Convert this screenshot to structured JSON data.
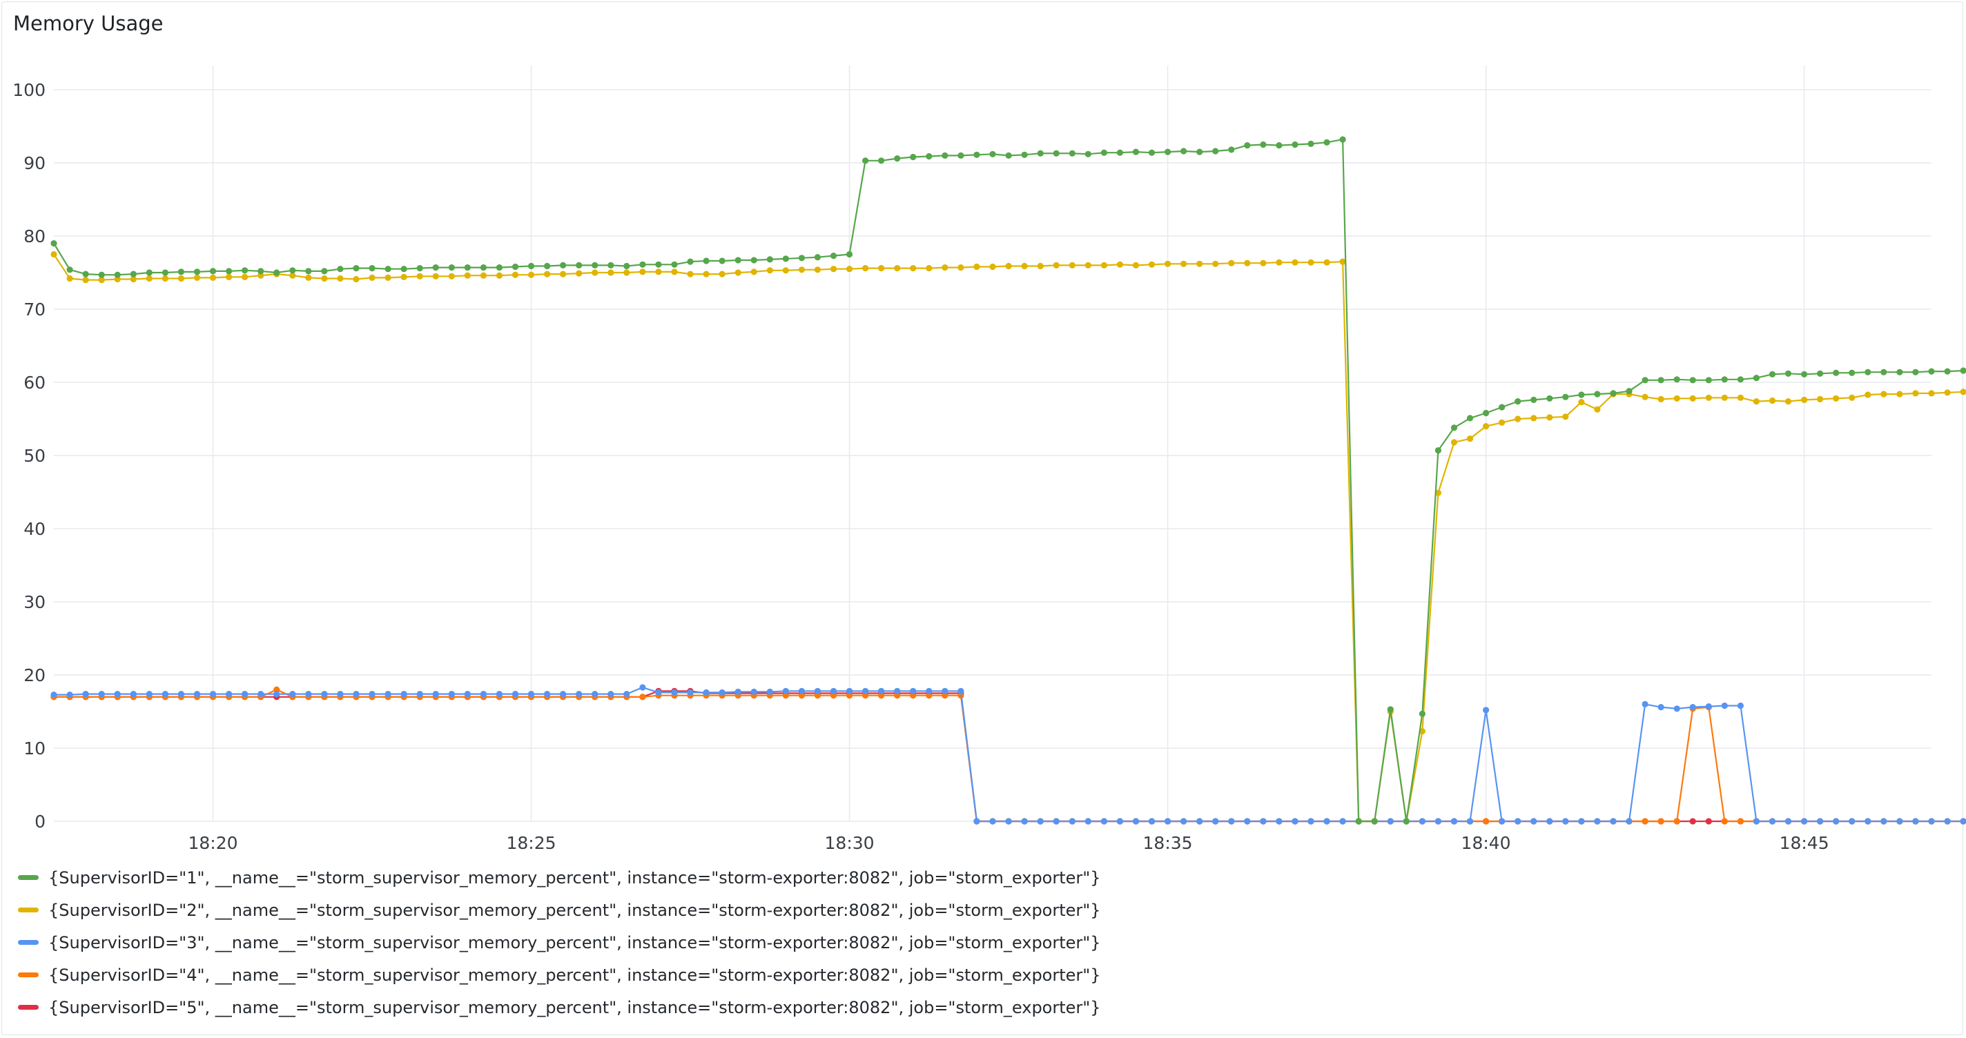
{
  "panel": {
    "title": "Memory Usage"
  },
  "colors": {
    "grid": "#e7e9ed",
    "axis_text": "#3a3f46"
  },
  "chart_data": {
    "type": "line",
    "title": "Memory Usage",
    "xlabel": "",
    "ylabel": "",
    "ylim": [
      0,
      100
    ],
    "xlim": [
      "18:17:30",
      "18:47:00"
    ],
    "grid": true,
    "legend_position": "bottom",
    "y_ticks": [
      "0",
      "10",
      "20",
      "30",
      "40",
      "50",
      "60",
      "70",
      "80",
      "90",
      "100"
    ],
    "x_ticks": [
      "18:20",
      "18:25",
      "18:30",
      "18:35",
      "18:40",
      "18:45"
    ],
    "sample_interval_seconds": 15,
    "x_start": "18:17:30",
    "series": [
      {
        "name": "{SupervisorID=\"1\", __name__=\"storm_supervisor_memory_percent\", instance=\"storm-exporter:8082\", job=\"storm_exporter\"}",
        "color": "#56a64b",
        "values": [
          79.0,
          75.4,
          74.8,
          74.7,
          74.7,
          74.8,
          75.0,
          75.0,
          75.1,
          75.1,
          75.2,
          75.2,
          75.3,
          75.2,
          75.0,
          75.3,
          75.2,
          75.2,
          75.5,
          75.6,
          75.6,
          75.5,
          75.5,
          75.6,
          75.7,
          75.7,
          75.7,
          75.7,
          75.7,
          75.8,
          75.9,
          75.9,
          76.0,
          76.0,
          76.0,
          76.0,
          75.9,
          76.1,
          76.1,
          76.1,
          76.5,
          76.6,
          76.6,
          76.7,
          76.7,
          76.8,
          76.9,
          77.0,
          77.1,
          77.3,
          77.5,
          90.3,
          90.3,
          90.6,
          90.8,
          90.9,
          91.0,
          91.0,
          91.1,
          91.2,
          91.0,
          91.1,
          91.3,
          91.3,
          91.3,
          91.2,
          91.4,
          91.4,
          91.5,
          91.4,
          91.5,
          91.6,
          91.5,
          91.6,
          91.8,
          92.4,
          92.5,
          92.4,
          92.5,
          92.6,
          92.8,
          93.2,
          0,
          0,
          15.3,
          0,
          14.7,
          50.7,
          53.8,
          55.1,
          55.8,
          56.6,
          57.4,
          57.6,
          57.8,
          58.0,
          58.3,
          58.4,
          58.5,
          58.8,
          60.3,
          60.3,
          60.4,
          60.3,
          60.3,
          60.4,
          60.4,
          60.6,
          61.1,
          61.2,
          61.1,
          61.2,
          61.3,
          61.3,
          61.4,
          61.4,
          61.4,
          61.4,
          61.5,
          61.5,
          61.6,
          61.6,
          61.6
        ],
        "start_index": 0
      },
      {
        "name": "{SupervisorID=\"2\", __name__=\"storm_supervisor_memory_percent\", instance=\"storm-exporter:8082\", job=\"storm_exporter\"}",
        "color": "#e0b400",
        "values": [
          77.5,
          74.2,
          74.0,
          74.0,
          74.1,
          74.1,
          74.2,
          74.2,
          74.2,
          74.3,
          74.3,
          74.4,
          74.4,
          74.6,
          74.8,
          74.6,
          74.3,
          74.2,
          74.2,
          74.1,
          74.3,
          74.3,
          74.4,
          74.5,
          74.5,
          74.5,
          74.6,
          74.6,
          74.6,
          74.7,
          74.7,
          74.8,
          74.8,
          74.9,
          75.0,
          75.0,
          75.0,
          75.1,
          75.1,
          75.1,
          74.8,
          74.8,
          74.8,
          75.0,
          75.1,
          75.3,
          75.3,
          75.4,
          75.4,
          75.5,
          75.5,
          75.6,
          75.6,
          75.6,
          75.6,
          75.6,
          75.7,
          75.7,
          75.8,
          75.8,
          75.9,
          75.9,
          75.9,
          76.0,
          76.0,
          76.0,
          76.0,
          76.1,
          76.0,
          76.1,
          76.2,
          76.2,
          76.2,
          76.2,
          76.3,
          76.3,
          76.3,
          76.4,
          76.4,
          76.4,
          76.4,
          76.5,
          0,
          0,
          15.0,
          0,
          12.3,
          44.9,
          51.8,
          52.3,
          54.0,
          54.5,
          55.0,
          55.1,
          55.2,
          55.3,
          57.3,
          56.3,
          58.4,
          58.4,
          58.0,
          57.7,
          57.8,
          57.8,
          57.9,
          57.9,
          57.9,
          57.4,
          57.5,
          57.4,
          57.6,
          57.7,
          57.8,
          57.9,
          58.3,
          58.4,
          58.4,
          58.5,
          58.5,
          58.6,
          58.7,
          58.7,
          58.6
        ],
        "start_index": 0
      },
      {
        "name": "{SupervisorID=\"3\", __name__=\"storm_supervisor_memory_percent\", instance=\"storm-exporter:8082\", job=\"storm_exporter\"}",
        "color": "#5794f2",
        "values": [
          17.3,
          17.3,
          17.4,
          17.4,
          17.4,
          17.4,
          17.4,
          17.4,
          17.4,
          17.4,
          17.4,
          17.4,
          17.4,
          17.4,
          17.4,
          17.4,
          17.4,
          17.4,
          17.4,
          17.4,
          17.4,
          17.4,
          17.4,
          17.4,
          17.4,
          17.4,
          17.4,
          17.4,
          17.4,
          17.4,
          17.4,
          17.4,
          17.4,
          17.4,
          17.4,
          17.4,
          17.4,
          18.3,
          17.6,
          17.6,
          17.6,
          17.6,
          17.6,
          17.7,
          17.7,
          17.7,
          17.8,
          17.8,
          17.8,
          17.8,
          17.8,
          17.8,
          17.8,
          17.8,
          17.8,
          17.8,
          17.8,
          17.8,
          0,
          0,
          0,
          0,
          0,
          0,
          0,
          0,
          0,
          0,
          0,
          0,
          0,
          0,
          0,
          0,
          0,
          0,
          0,
          0,
          0,
          0,
          0,
          0,
          0,
          0,
          0,
          0,
          0,
          0,
          0,
          0,
          15.2,
          0,
          0,
          0,
          0,
          0,
          0,
          0,
          0,
          0,
          16.0,
          15.6,
          15.4,
          15.6,
          15.7,
          15.8,
          15.8,
          0,
          0,
          0,
          0,
          0,
          0,
          0,
          0,
          0,
          0,
          0,
          0,
          0,
          0,
          0,
          0
        ],
        "start_index": 0
      },
      {
        "name": "{SupervisorID=\"4\", __name__=\"storm_supervisor_memory_percent\", instance=\"storm-exporter:8082\", job=\"storm_exporter\"}",
        "color": "#ff780a",
        "values": [
          17.0,
          17.0,
          17.0,
          17.0,
          17.0,
          17.0,
          17.0,
          17.0,
          17.0,
          17.0,
          17.0,
          17.0,
          17.0,
          17.0,
          18.0,
          17.0,
          17.0,
          17.0,
          17.0,
          17.0,
          17.0,
          17.0,
          17.0,
          17.0,
          17.0,
          17.0,
          17.0,
          17.0,
          17.0,
          17.0,
          17.0,
          17.0,
          17.0,
          17.0,
          17.0,
          17.0,
          17.0,
          17.0,
          17.2,
          17.2,
          17.2,
          17.2,
          17.2,
          17.2,
          17.2,
          17.2,
          17.2,
          17.2,
          17.2,
          17.2,
          17.2,
          17.2,
          17.2,
          17.2,
          17.2,
          17.2,
          17.2,
          17.2,
          0,
          0,
          0,
          0,
          0,
          0,
          0,
          0,
          0,
          0,
          0,
          0,
          0,
          0,
          0,
          0,
          0,
          0,
          0,
          0,
          0,
          0,
          0,
          0,
          0,
          0,
          0,
          0,
          0,
          0,
          0,
          0,
          0,
          0,
          0,
          0,
          0,
          0,
          0,
          0,
          0,
          0,
          0,
          0,
          0,
          15.4,
          15.6,
          0,
          0,
          0,
          0,
          0,
          0,
          0,
          0,
          0,
          0,
          0,
          0,
          0,
          0,
          0,
          0,
          0,
          0
        ],
        "start_index": 0
      },
      {
        "name": "{SupervisorID=\"5\", __name__=\"storm_supervisor_memory_percent\", instance=\"storm-exporter:8082\", job=\"storm_exporter\"}",
        "color": "#e02f44",
        "values": [
          17.0,
          17.0,
          17.0,
          17.0,
          17.0,
          17.0,
          17.0,
          17.0,
          17.0,
          17.0,
          17.0,
          17.0,
          17.0,
          17.0,
          17.0,
          17.0,
          17.0,
          17.0,
          17.0,
          17.0,
          17.0,
          17.0,
          17.0,
          17.0,
          17.0,
          17.0,
          17.0,
          17.0,
          17.0,
          17.0,
          17.0,
          17.0,
          17.0,
          17.0,
          17.0,
          17.0,
          17.0,
          17.0,
          17.8,
          17.8,
          17.8,
          17.5,
          17.5,
          17.5,
          17.5,
          17.5,
          17.5,
          17.5,
          17.5,
          17.5,
          17.5,
          17.5,
          17.5,
          17.5,
          17.5,
          17.5,
          17.5,
          17.5,
          0,
          0,
          0,
          0,
          0,
          0,
          0,
          0,
          0,
          0,
          0,
          0,
          0,
          0,
          0,
          0,
          0,
          0,
          0,
          0,
          0,
          0,
          0,
          0,
          0,
          0,
          0,
          0,
          0,
          0,
          0,
          0,
          0,
          0,
          0,
          0,
          0,
          0,
          0,
          0,
          0,
          0,
          0,
          0,
          0,
          0,
          0,
          0,
          0,
          0,
          0,
          0,
          0,
          0,
          0,
          0,
          0,
          0,
          0,
          0,
          0,
          0,
          0,
          0,
          0
        ],
        "start_index": 0
      }
    ]
  }
}
